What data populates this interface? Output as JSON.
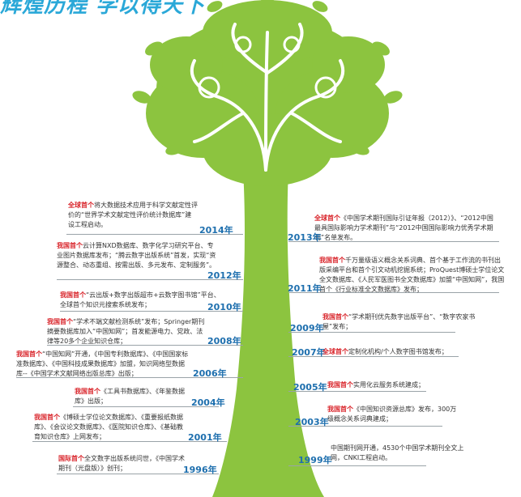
{
  "title": "辉煌历程 学以得天下",
  "colors": {
    "tree": "#8cc43f",
    "year": "#1e6fae",
    "highlight": "#d9252b",
    "title": "#2aa8d8"
  },
  "events": [
    {
      "year": "2014年",
      "hl": "全球首个",
      "text": "将大数据技术应用于科学文献定性评价的“世界学术文献定性评价统计数据库”建设工程启动。"
    },
    {
      "year": "2013年",
      "hl": "全球首个",
      "text": "《中国学术期刊国际引证年报（2012）》、“2012中国最具国际影响力学术期刊”与“2012中国国际影响力优秀学术期刊”名单发布。"
    },
    {
      "year": "2012年",
      "hl": "我国首个",
      "text": "云计算NXD数据库、数字化学习研究平台、专业图片数据库发布；“腾云数字出版系统”首发，实现“资源整合、动态重组、按需出版、多元发布、定制服务”。"
    },
    {
      "year": "2011年",
      "hl": "我国首个",
      "text": "千万量级语义概念关系词典、首个基于工作流的书刊出版采编平台和首个引文动机挖掘系统；ProQuest博硕士学位论文全文数据库、《人民军医图书全文数据库》加盟“中国知网”，我国首个《行业标准全文数据库》发布；"
    },
    {
      "year": "2010年",
      "hl": "我国首个",
      "text": "“云出版+数字出版超市+云数字图书馆”平台、全球首个知识元搜索系统发布；"
    },
    {
      "year": "2009年",
      "hl": "我国首个",
      "text": "“学术期刊优先数字出版平台”、“数字农家书屋”发布；"
    },
    {
      "year": "2008年",
      "hl": "我国首个",
      "text": "“学术不端文献检测系统”发布；Springer期刊摘要数据库加入“中国知网”；首发能源电力、党政、法律等20多个企业知识仓库；"
    },
    {
      "year": "2007年",
      "hl": "全球首个",
      "text": "定制化机构/个人数字图书馆发布；"
    },
    {
      "year": "2006年",
      "hl": "我国首个",
      "text": "“中国知网”开通，《中国专利数据库》、《中国国家标准数据库》、《中国科技成果数据库》加盟，知识网络型数据库--《中国学术文献网络出版总库》出版；"
    },
    {
      "year": "2005年",
      "hl": "我国首个",
      "text": "实用化云服务系统建成；"
    },
    {
      "year": "2004年",
      "hl": "我国首个",
      "text": "《工具书数据库》、《年鉴数据库》出版；"
    },
    {
      "year": "2003年",
      "hl": "我国首个",
      "text": "《中国知识资源总库》发布，300万级概念关系词典建成；"
    },
    {
      "year": "2001年",
      "hl": "我国首个",
      "text": "《博硕士学位论文数据库》、《重要报纸数据库》、《会议论文数据库》、《医院知识仓库》、《基础教育知识仓库》上网发布；"
    },
    {
      "year": "1999年",
      "hl": "",
      "text": "中国期刊网开通，4530个中国学术期刊全文上网，CNKI工程启动。"
    },
    {
      "year": "1996年",
      "hl": "国际首个",
      "text": "全文数字出版系统问世，《中国学术期刊（光盘版）》创刊；"
    }
  ]
}
